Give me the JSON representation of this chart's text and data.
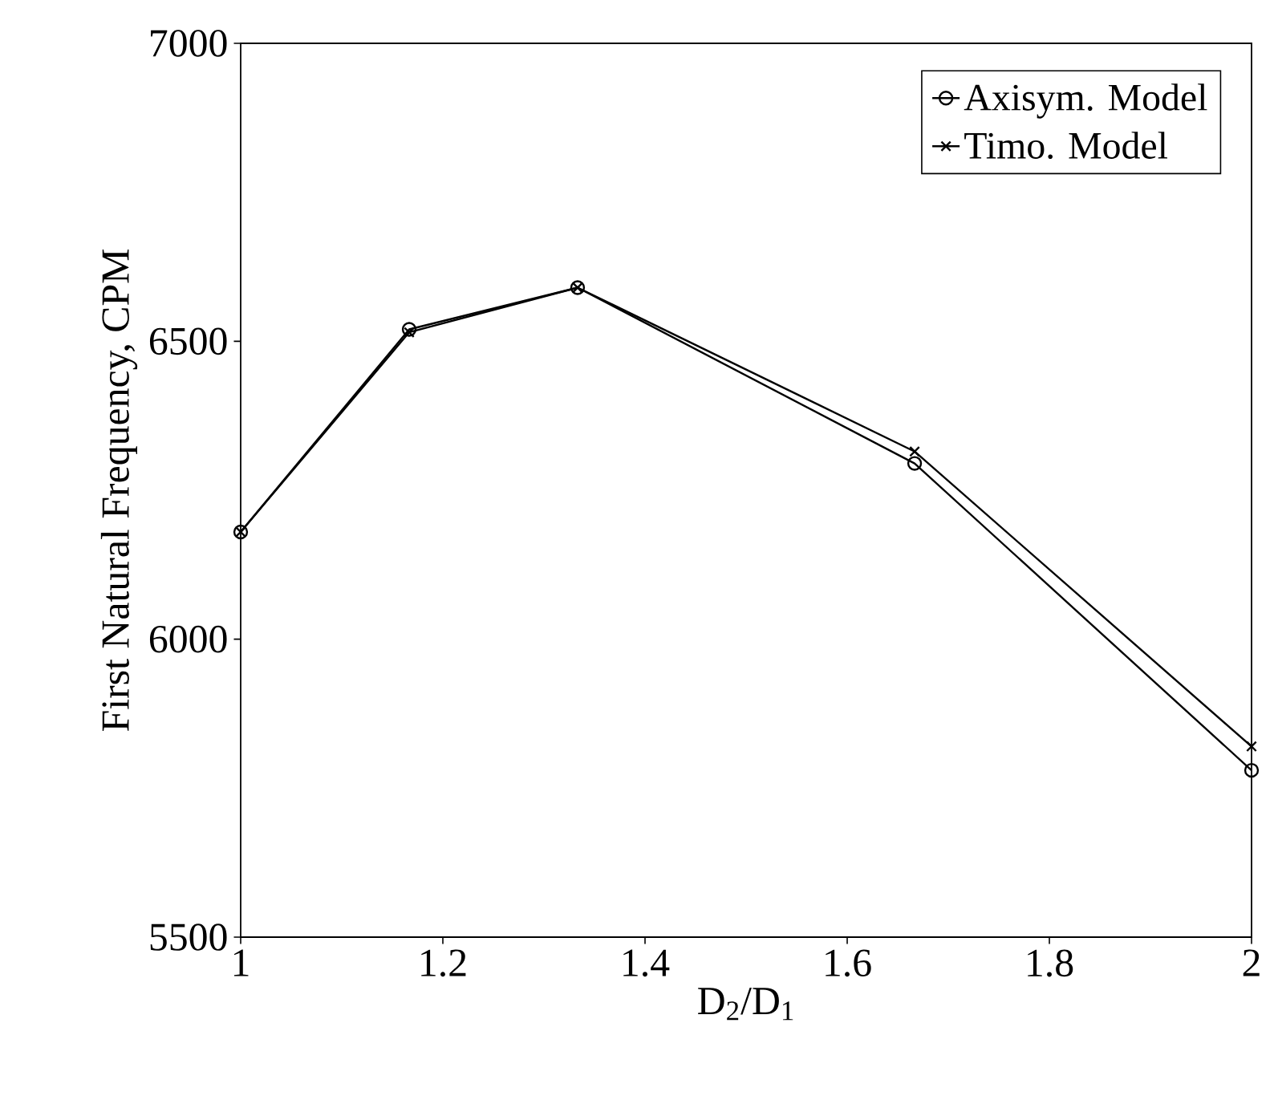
{
  "chart_data": {
    "type": "line",
    "xlabel": "D$_{2}$/D$_{1}$",
    "ylabel": "First Natural Frequency, CPM",
    "x": [
      1,
      1.1667,
      1.3333,
      1.6667,
      2
    ],
    "series": [
      {
        "name": "Axisym. Model",
        "color": "#000000",
        "marker": "circle",
        "values": [
          6180,
          6520,
          6590,
          6295,
          5780
        ]
      },
      {
        "name": "Timo. Model",
        "color": "#000000",
        "marker": "cross",
        "values": [
          6180,
          6515,
          6590,
          6315,
          5820
        ]
      }
    ],
    "xlim": [
      1,
      2
    ],
    "ylim": [
      5500,
      7000
    ],
    "xticks": [
      1,
      1.2,
      1.4,
      1.6,
      1.8,
      2
    ],
    "yticks": [
      5500,
      6000,
      6500,
      7000
    ],
    "grid": false,
    "legend": "top right",
    "line_style": "solid"
  }
}
